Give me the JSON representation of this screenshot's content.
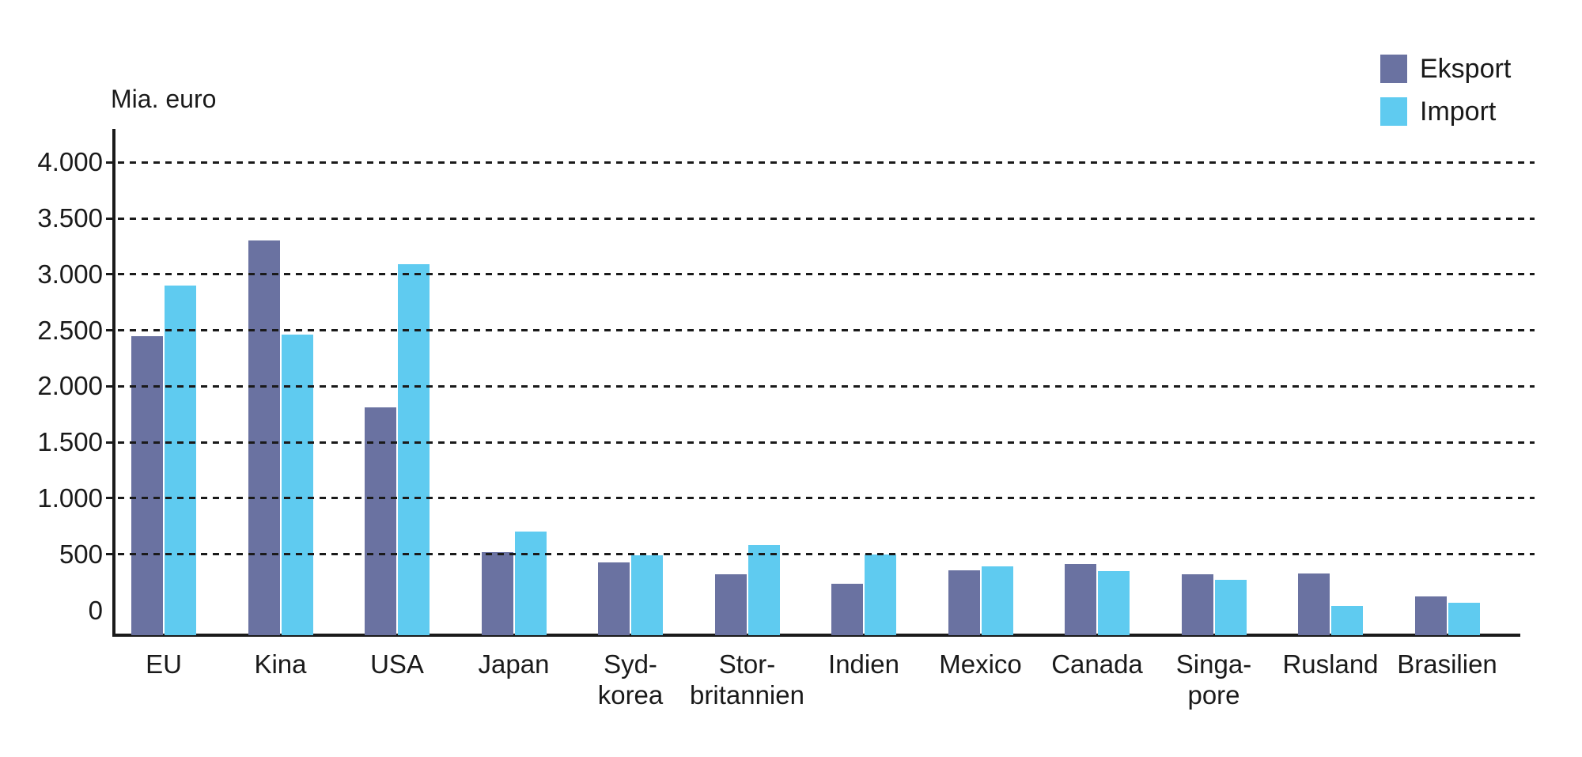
{
  "chart_data": {
    "type": "bar",
    "title": "",
    "unit_label": "Mia. euro",
    "categories": [
      "EU",
      "Kina",
      "USA",
      "Japan",
      "Syd-\nkorea",
      "Stor-\nbritannien",
      "Indien",
      "Mexico",
      "Canada",
      "Singa-\npore",
      "Rusland",
      "Brasilien"
    ],
    "series": [
      {
        "name": "Eksport",
        "color": "#6A72A1",
        "values": [
          2450,
          3300,
          1810,
          520,
          430,
          320,
          240,
          360,
          410,
          320,
          330,
          125
        ]
      },
      {
        "name": "Import",
        "color": "#5FCBF0",
        "values": [
          2900,
          2460,
          3090,
          700,
          490,
          580,
          500,
          390,
          350,
          270,
          40,
          70
        ]
      }
    ],
    "y_axis": {
      "min": 0,
      "max": 4000,
      "tick_step": 500,
      "tick_labels_top_to_bottom": [
        "4.000",
        "3.500",
        "3.000",
        "2.500",
        "2.000",
        "1.500",
        "1.000",
        "500",
        "0"
      ]
    },
    "grid": "horizontal dashed lines at every tick, drawn over bars",
    "legend_position": "top-right",
    "bars_anchored_below_zero": true,
    "axis_color": "#1a1a1a",
    "background_color": "#ffffff"
  }
}
